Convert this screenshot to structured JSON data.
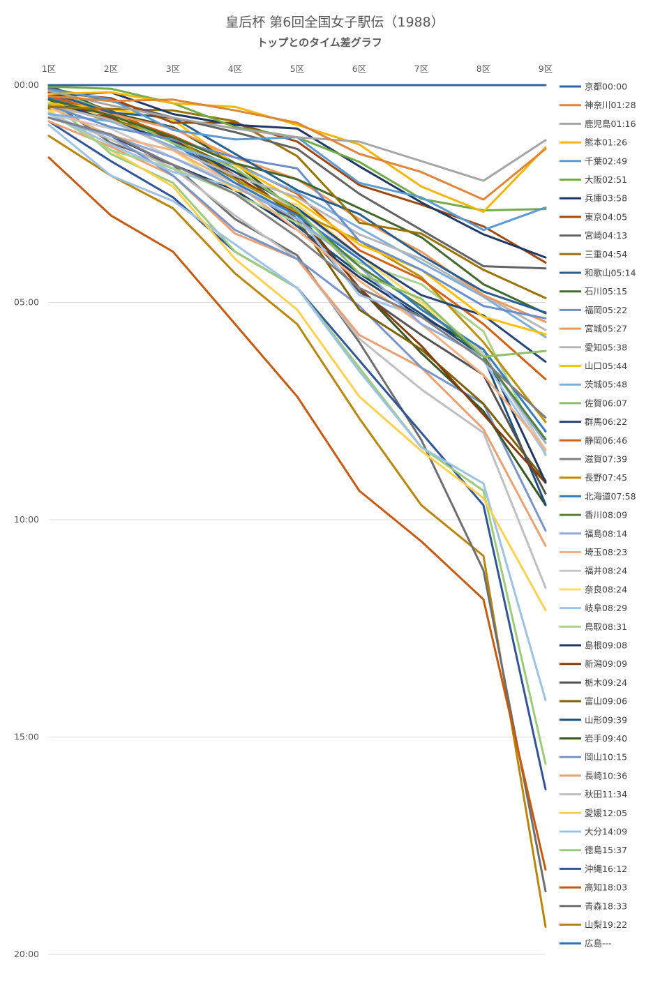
{
  "chart_data": {
    "type": "line",
    "title": "皇后杯 第6回全国女子駅伝（1988）",
    "subtitle": "トップとのタイム差グラフ",
    "categories": [
      "1区",
      "2区",
      "3区",
      "4区",
      "5区",
      "6区",
      "7区",
      "8区",
      "9区"
    ],
    "y_ticks": [
      "00:00",
      "05:00",
      "10:00",
      "15:00",
      "20:00"
    ],
    "y_range_seconds": [
      0,
      1200
    ],
    "y_inverted": true,
    "grid": "horizontal",
    "legend_position": "right",
    "series": [
      {
        "name": "京都00:00",
        "color": "#2e64a0",
        "values": [
          0,
          0,
          0,
          0,
          0,
          0,
          0,
          0,
          0
        ]
      },
      {
        "name": "神奈川01:28",
        "color": "#e0843a",
        "values": [
          15,
          22,
          20,
          35,
          52,
          95,
          120,
          158,
          88
        ]
      },
      {
        "name": "鹿児島01:16",
        "color": "#a5a5a5",
        "values": [
          8,
          28,
          45,
          60,
          72,
          78,
          105,
          132,
          76
        ]
      },
      {
        "name": "熊本01:26",
        "color": "#f2b705",
        "values": [
          12,
          10,
          25,
          30,
          55,
          82,
          140,
          175,
          86
        ]
      },
      {
        "name": "千葉02:49",
        "color": "#5b9bd5",
        "values": [
          6,
          20,
          62,
          75,
          72,
          135,
          155,
          200,
          169
        ]
      },
      {
        "name": "大阪02:51",
        "color": "#70ad47",
        "values": [
          2,
          5,
          25,
          58,
          72,
          106,
          157,
          173,
          171
        ]
      },
      {
        "name": "兵庫03:58",
        "color": "#1f3864",
        "values": [
          15,
          10,
          40,
          55,
          60,
          112,
          162,
          206,
          238
        ]
      },
      {
        "name": "東京04:05",
        "color": "#9e480e",
        "values": [
          10,
          18,
          52,
          52,
          78,
          138,
          165,
          195,
          245
        ]
      },
      {
        "name": "宮崎04:13",
        "color": "#636363",
        "values": [
          4,
          22,
          45,
          65,
          88,
          150,
          200,
          250,
          253
        ]
      },
      {
        "name": "三重04:54",
        "color": "#997300",
        "values": [
          30,
          33,
          35,
          50,
          98,
          190,
          205,
          255,
          294
        ]
      },
      {
        "name": "和歌山05:14",
        "color": "#255e91",
        "values": [
          10,
          38,
          45,
          95,
          145,
          178,
          235,
          285,
          314
        ]
      },
      {
        "name": "石川05:15",
        "color": "#43682b",
        "values": [
          20,
          42,
          72,
          108,
          130,
          170,
          210,
          275,
          315
        ]
      },
      {
        "name": "福岡05:22",
        "color": "#698ed0",
        "values": [
          28,
          58,
          75,
          100,
          115,
          215,
          255,
          305,
          322
        ]
      },
      {
        "name": "宮城05:27",
        "color": "#f1975a",
        "values": [
          10,
          40,
          60,
          100,
          130,
          185,
          230,
          290,
          327
        ]
      },
      {
        "name": "愛知05:38",
        "color": "#b7b7b7",
        "values": [
          28,
          48,
          88,
          125,
          155,
          206,
          240,
          290,
          338
        ]
      },
      {
        "name": "山口05:44",
        "color": "#ffc000",
        "values": [
          25,
          33,
          48,
          110,
          160,
          220,
          255,
          320,
          344
        ]
      },
      {
        "name": "茨城05:48",
        "color": "#7cafdd",
        "values": [
          40,
          50,
          85,
          110,
          148,
          197,
          245,
          292,
          348
        ]
      },
      {
        "name": "佐賀06:07",
        "color": "#8cc168",
        "values": [
          5,
          38,
          80,
          115,
          172,
          260,
          295,
          375,
          367
        ]
      },
      {
        "name": "群馬06:22",
        "color": "#264478",
        "values": [
          20,
          50,
          78,
          120,
          170,
          235,
          290,
          318,
          382
        ]
      },
      {
        "name": "静岡06:46",
        "color": "#d26012",
        "values": [
          15,
          40,
          70,
          108,
          150,
          228,
          268,
          330,
          406
        ]
      },
      {
        "name": "滋賀07:39",
        "color": "#7f7f7f",
        "values": [
          45,
          68,
          110,
          150,
          210,
          280,
          320,
          380,
          459
        ]
      },
      {
        "name": "長野07:45",
        "color": "#bf8f00",
        "values": [
          25,
          50,
          70,
          130,
          175,
          215,
          265,
          355,
          465
        ]
      },
      {
        "name": "北海道07:58",
        "color": "#327dc2",
        "values": [
          18,
          38,
          80,
          135,
          180,
          240,
          310,
          365,
          478
        ]
      },
      {
        "name": "香川08:09",
        "color": "#548235",
        "values": [
          25,
          48,
          70,
          130,
          175,
          250,
          305,
          375,
          489
        ]
      },
      {
        "name": "福島08:14",
        "color": "#8faadc",
        "values": [
          45,
          70,
          100,
          140,
          185,
          250,
          330,
          375,
          494
        ]
      },
      {
        "name": "埼玉08:23",
        "color": "#f4b183",
        "values": [
          30,
          70,
          90,
          135,
          200,
          270,
          330,
          400,
          503
        ]
      },
      {
        "name": "福井08:24",
        "color": "#c9c9c9",
        "values": [
          40,
          60,
          100,
          135,
          170,
          240,
          310,
          370,
          504
        ]
      },
      {
        "name": "奈良08:24",
        "color": "#ffd966",
        "values": [
          35,
          40,
          90,
          145,
          165,
          235,
          300,
          370,
          504
        ]
      },
      {
        "name": "岐阜08:29",
        "color": "#9dc3e6",
        "values": [
          40,
          82,
          120,
          140,
          180,
          290,
          320,
          380,
          509
        ]
      },
      {
        "name": "鳥取08:31",
        "color": "#a9d18e",
        "values": [
          38,
          90,
          115,
          150,
          190,
          245,
          275,
          340,
          511
        ]
      },
      {
        "name": "島根09:08",
        "color": "#203864",
        "values": [
          45,
          70,
          110,
          145,
          200,
          265,
          320,
          365,
          548
        ]
      },
      {
        "name": "新潟09:09",
        "color": "#843c0c",
        "values": [
          20,
          45,
          75,
          125,
          178,
          280,
          360,
          455,
          549
        ]
      },
      {
        "name": "栃木09:24",
        "color": "#525252",
        "values": [
          10,
          35,
          80,
          130,
          190,
          285,
          345,
          400,
          564
        ]
      },
      {
        "name": "富山09:06",
        "color": "#7f6000",
        "values": [
          32,
          35,
          75,
          115,
          185,
          310,
          365,
          440,
          546
        ]
      },
      {
        "name": "山形09:39",
        "color": "#1f4e79",
        "values": [
          15,
          35,
          75,
          128,
          195,
          260,
          316,
          375,
          579
        ]
      },
      {
        "name": "岩手09:40",
        "color": "#375623",
        "values": [
          0,
          38,
          58,
          108,
          175,
          280,
          370,
          450,
          580
        ]
      },
      {
        "name": "岡山10:15",
        "color": "#7895c9",
        "values": [
          45,
          70,
          125,
          200,
          240,
          305,
          390,
          440,
          615
        ]
      },
      {
        "name": "長崎10:36",
        "color": "#eba071",
        "values": [
          50,
          85,
          125,
          205,
          240,
          345,
          390,
          475,
          636
        ]
      },
      {
        "name": "秋田11:34",
        "color": "#bfbfbf",
        "values": [
          40,
          75,
          115,
          180,
          240,
          350,
          420,
          480,
          694
        ]
      },
      {
        "name": "愛媛12:05",
        "color": "#ffd04f",
        "values": [
          35,
          90,
          140,
          240,
          310,
          430,
          505,
          570,
          725
        ]
      },
      {
        "name": "大分14:09",
        "color": "#9cc2e5",
        "values": [
          55,
          125,
          160,
          220,
          280,
          395,
          500,
          550,
          849
        ]
      },
      {
        "name": "徳島15:37",
        "color": "#9ccb7a",
        "values": [
          20,
          95,
          135,
          230,
          280,
          390,
          500,
          560,
          937
        ]
      },
      {
        "name": "沖縄16:12",
        "color": "#2f5597",
        "values": [
          50,
          105,
          155,
          230,
          280,
          380,
          480,
          580,
          972
        ]
      },
      {
        "name": "高知18:03",
        "color": "#c55a11",
        "values": [
          100,
          180,
          230,
          330,
          430,
          560,
          630,
          710,
          1083
        ]
      },
      {
        "name": "青森18:33",
        "color": "#6e6e6e",
        "values": [
          20,
          80,
          110,
          185,
          235,
          355,
          490,
          670,
          1113
        ]
      },
      {
        "name": "山梨19:22",
        "color": "#b8860b",
        "values": [
          70,
          125,
          170,
          260,
          330,
          460,
          580,
          650,
          1162
        ]
      },
      {
        "name": "広島---",
        "color": "#2e75b6",
        "values": [
          null,
          null,
          null,
          null,
          null,
          null,
          null,
          null,
          null
        ]
      }
    ]
  }
}
